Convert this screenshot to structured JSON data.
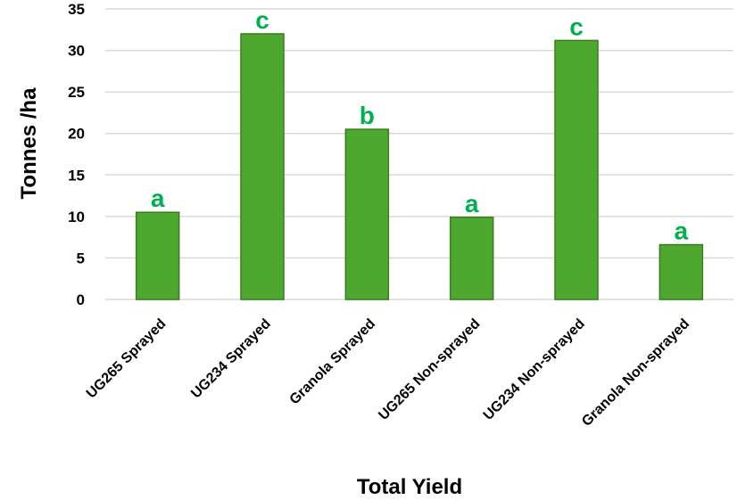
{
  "chart_data": {
    "type": "bar",
    "title": "",
    "xlabel": "Total Yield",
    "ylabel": "Tonnes /ha",
    "ylim": [
      0,
      35
    ],
    "yticks": [
      "0",
      "5",
      "10",
      "15",
      "20",
      "25",
      "30",
      "35"
    ],
    "grid": true,
    "categories": [
      "UG265 Sprayed",
      "UG234 Sprayed",
      "Granola Sprayed",
      "UG265 Non-sprayed",
      "UG234 Non-sprayed",
      "Granola Non-sprayed"
    ],
    "values": [
      10.5,
      32,
      20.5,
      9.9,
      31.2,
      6.6
    ],
    "letters": [
      "a",
      "c",
      "b",
      "a",
      "c",
      "a"
    ],
    "bar_color": "#4ea72e",
    "bar_edge_color": "#3a7d22",
    "letter_color": "#00b050"
  }
}
